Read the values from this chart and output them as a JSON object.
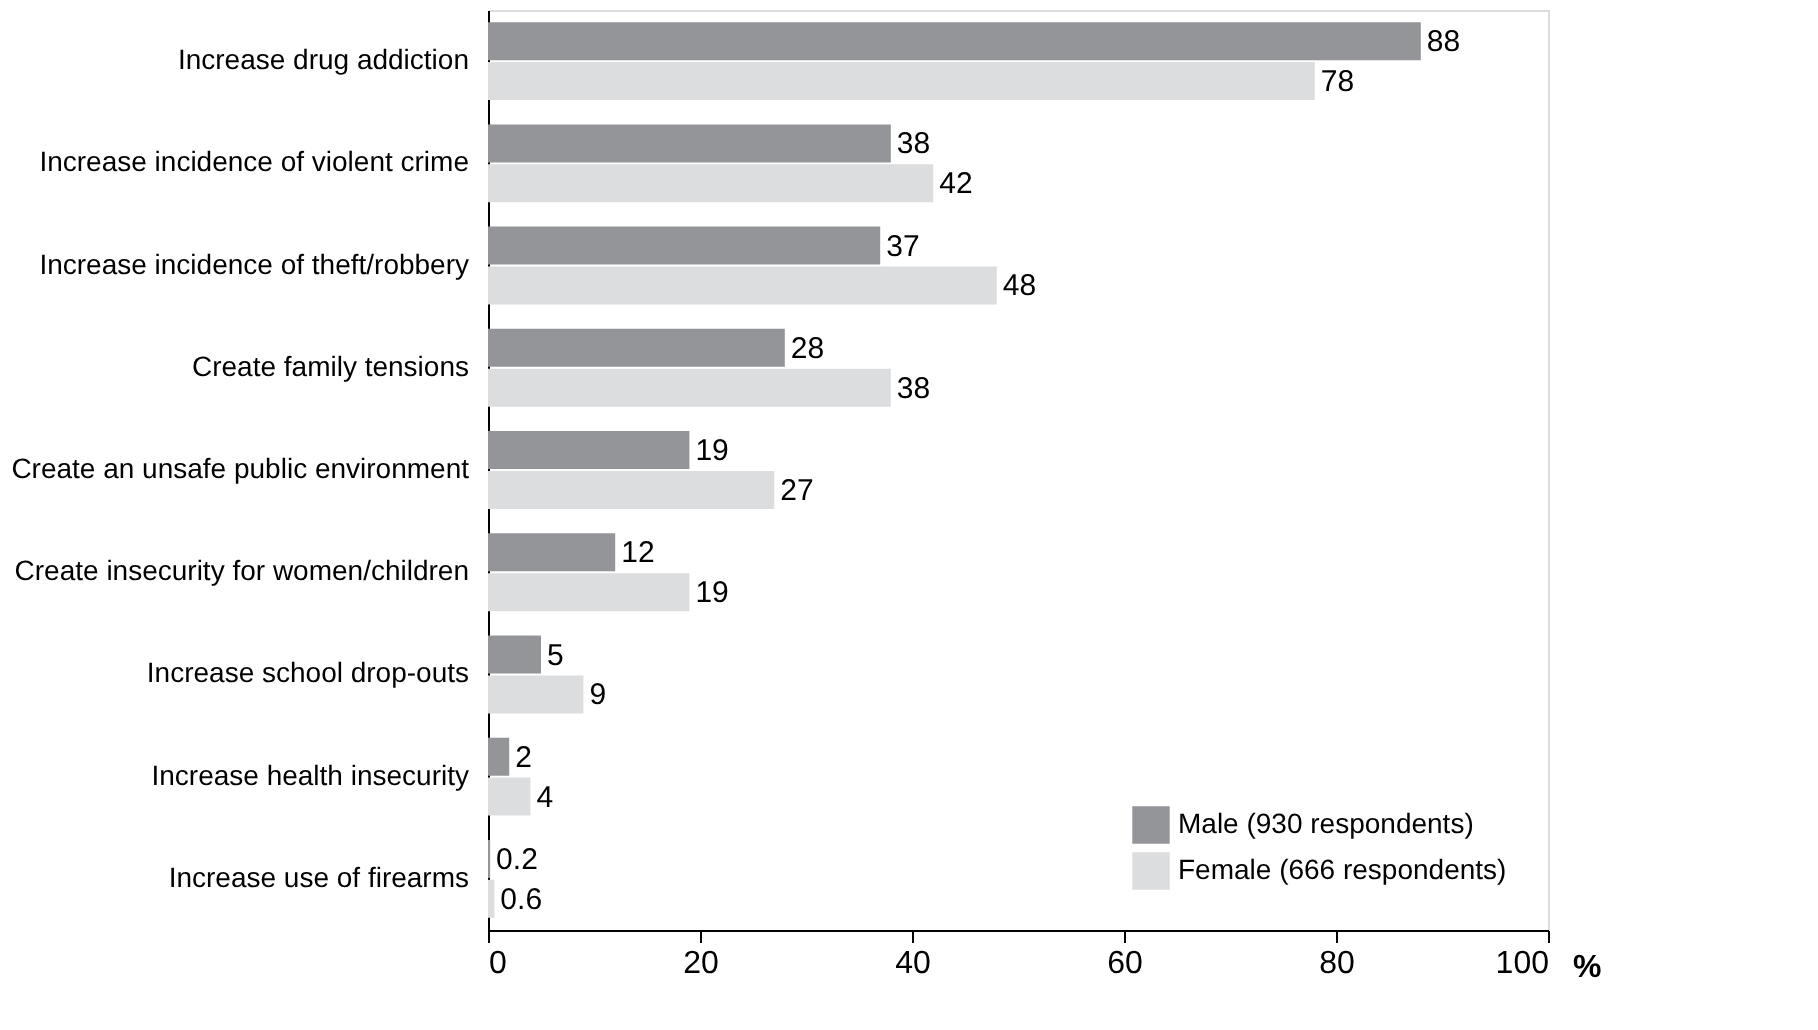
{
  "chart_data": {
    "type": "bar",
    "orientation": "horizontal",
    "xlabel": "%",
    "categories": [
      "Increase drug addiction",
      "Increase incidence of violent crime",
      "Increase incidence of theft/robbery",
      "Create family tensions",
      "Create an unsafe public environment",
      "Create insecurity for women/children",
      "Increase school drop-outs",
      "Increase health insecurity",
      "Increase use of firearms"
    ],
    "series": [
      {
        "name": "Male (930 respondents)",
        "color": "#939598",
        "values": [
          88,
          38,
          37,
          28,
          19,
          12,
          5,
          2,
          0.2
        ]
      },
      {
        "name": "Female (666 respondents)",
        "color": "#dcdddf",
        "values": [
          78,
          42,
          48,
          38,
          27,
          19,
          9,
          4,
          0.6
        ]
      }
    ],
    "xlim": [
      0,
      100
    ],
    "xticks": [
      0,
      20,
      40,
      60,
      80,
      100
    ],
    "data_labels": true,
    "legend": "bottom right",
    "grid": false
  }
}
